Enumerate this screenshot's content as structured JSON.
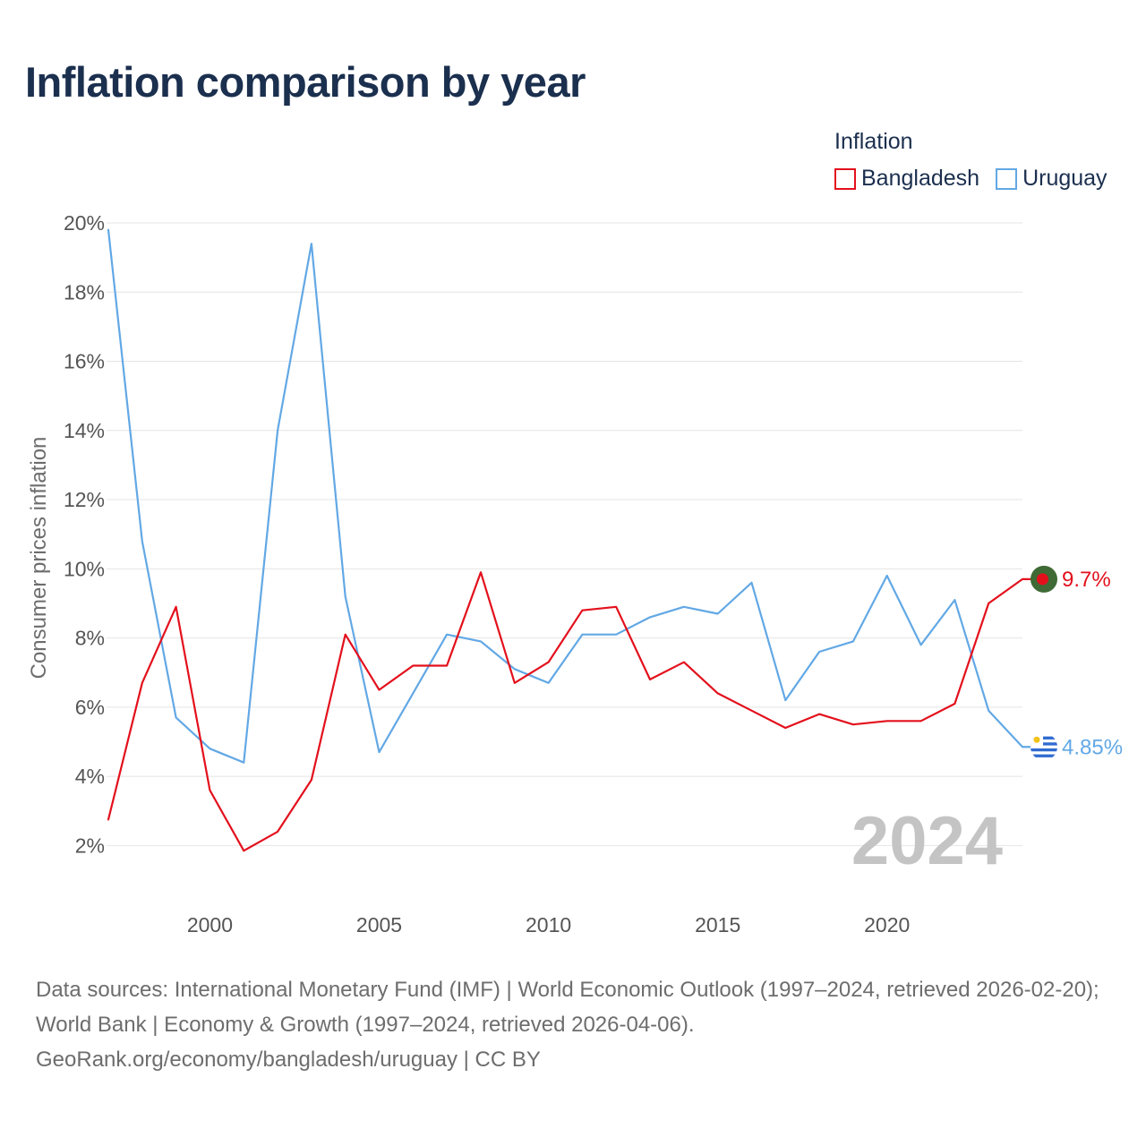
{
  "title": "Inflation comparison by year",
  "legend": {
    "title": "Inflation",
    "items": [
      {
        "label": "Bangladesh",
        "color": "#e3101c"
      },
      {
        "label": "Uruguay",
        "color": "#62a8e5"
      }
    ]
  },
  "chart_data": {
    "type": "line",
    "title": "Inflation comparison by year",
    "xlabel": "",
    "ylabel": "Consumer prices inflation",
    "x": [
      1997,
      1998,
      1999,
      2000,
      2001,
      2002,
      2003,
      2004,
      2005,
      2006,
      2007,
      2008,
      2009,
      2010,
      2011,
      2012,
      2013,
      2014,
      2015,
      2016,
      2017,
      2018,
      2019,
      2020,
      2021,
      2022,
      2023,
      2024
    ],
    "xlim": [
      1997,
      2024
    ],
    "ylim": [
      1,
      20
    ],
    "x_ticks": [
      2000,
      2005,
      2010,
      2015,
      2020
    ],
    "y_ticks": [
      2,
      4,
      6,
      8,
      10,
      12,
      14,
      16,
      18,
      20
    ],
    "y_tick_labels": [
      "2%",
      "4%",
      "6%",
      "8%",
      "10%",
      "12%",
      "14%",
      "16%",
      "18%",
      "20%"
    ],
    "grid": true,
    "year_watermark": "2024",
    "series": [
      {
        "name": "Bangladesh",
        "color": "#e3101c",
        "end_label": "9.7%",
        "values": [
          2.75,
          6.7,
          8.9,
          3.6,
          1.85,
          2.4,
          3.9,
          8.1,
          6.5,
          7.2,
          7.2,
          9.9,
          6.7,
          7.3,
          8.8,
          8.9,
          6.8,
          7.3,
          6.4,
          5.9,
          5.4,
          5.8,
          5.5,
          5.6,
          5.6,
          6.1,
          9.0,
          9.7
        ]
      },
      {
        "name": "Uruguay",
        "color": "#62a8e5",
        "end_label": "4.85%",
        "values": [
          19.8,
          10.8,
          5.7,
          4.8,
          4.4,
          14.0,
          19.4,
          9.2,
          4.7,
          6.4,
          8.1,
          7.9,
          7.1,
          6.7,
          8.1,
          8.1,
          8.6,
          8.9,
          8.7,
          9.6,
          6.2,
          7.6,
          7.9,
          9.8,
          7.8,
          9.1,
          5.9,
          4.85
        ]
      }
    ]
  },
  "footer": {
    "sources": "Data sources: International Monetary Fund (IMF) | World Economic Outlook (1997–2024, retrieved 2026-02-20); World Bank | Economy & Growth (1997–2024, retrieved 2026-04-06).",
    "credit": "GeoRank.org/economy/bangladesh/uruguay | CC BY"
  }
}
